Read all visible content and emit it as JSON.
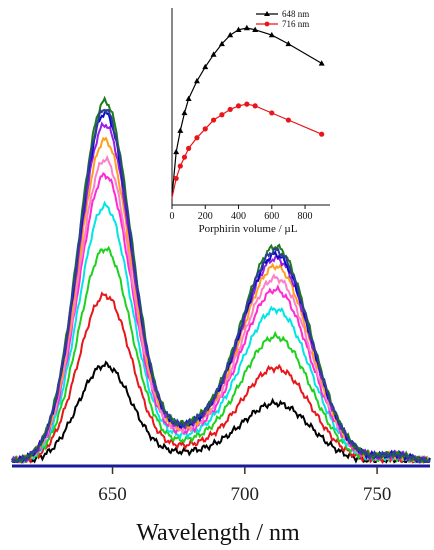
{
  "chart_data": [
    {
      "type": "line",
      "title": "",
      "xlabel": "Wavelength / nm",
      "ylabel": "",
      "xlim": [
        612,
        770
      ],
      "ylim": [
        0,
        1.0
      ],
      "x_ticks": [
        650,
        700,
        750
      ],
      "grid": false,
      "series_colors": [
        "#000000",
        "#e8161b",
        "#1fd11f",
        "#00e5e5",
        "#ff2ad4",
        "#ff7ec8",
        "#ff9f1c",
        "#9b1fe6",
        "#0a0acf",
        "#1e7a1e",
        "#2f3d92"
      ],
      "peak1_x": 647,
      "peak2_x": 712,
      "series": [
        {
          "color": "#000000",
          "peak1": 0.25,
          "peak2": 0.15
        },
        {
          "color": "#e8161b",
          "peak1": 0.43,
          "peak2": 0.24
        },
        {
          "color": "#1fd11f",
          "peak1": 0.55,
          "peak2": 0.32
        },
        {
          "color": "#00e5e5",
          "peak1": 0.66,
          "peak2": 0.39
        },
        {
          "color": "#ff2ad4",
          "peak1": 0.74,
          "peak2": 0.44
        },
        {
          "color": "#ff7ec8",
          "peak1": 0.78,
          "peak2": 0.47
        },
        {
          "color": "#ff9f1c",
          "peak1": 0.83,
          "peak2": 0.5
        },
        {
          "color": "#9b1fe6",
          "peak1": 0.87,
          "peak2": 0.52
        },
        {
          "color": "#0a0acf",
          "peak1": 0.9,
          "peak2": 0.53
        },
        {
          "color": "#1e7a1e",
          "peak1": 0.93,
          "peak2": 0.55
        },
        {
          "color": "#2f3d92",
          "peak1": 0.91,
          "peak2": 0.54
        }
      ]
    },
    {
      "type": "line",
      "title": "",
      "xlabel": "Porphirin volume / µL",
      "ylabel": "",
      "xlim": [
        0,
        950
      ],
      "ylim": [
        0,
        1.0
      ],
      "x_ticks": [
        0,
        200,
        400,
        600,
        800
      ],
      "legend_position": "top-right",
      "series": [
        {
          "name": "648 nm",
          "color": "#000000",
          "marker": "triangle",
          "x": [
            0,
            25,
            50,
            75,
            100,
            150,
            200,
            250,
            300,
            350,
            400,
            450,
            500,
            600,
            700,
            900
          ],
          "y": [
            0.05,
            0.3,
            0.42,
            0.52,
            0.6,
            0.7,
            0.78,
            0.85,
            0.91,
            0.96,
            0.99,
            1.0,
            0.99,
            0.96,
            0.91,
            0.8
          ]
        },
        {
          "name": "716 nm",
          "color": "#e8161b",
          "marker": "circle",
          "x": [
            0,
            25,
            50,
            75,
            100,
            150,
            200,
            250,
            300,
            350,
            400,
            450,
            500,
            600,
            700,
            900
          ],
          "y": [
            0.04,
            0.15,
            0.22,
            0.27,
            0.32,
            0.38,
            0.43,
            0.48,
            0.51,
            0.54,
            0.56,
            0.57,
            0.56,
            0.52,
            0.48,
            0.4
          ]
        }
      ]
    }
  ]
}
